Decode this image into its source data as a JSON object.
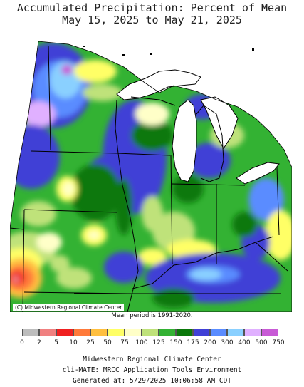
{
  "title_line1": "Accumulated Precipitation: Percent of Mean",
  "title_line2": "May 15, 2025 to May 21, 2025",
  "copyright": "(C) Midwestern Regional Climate Center",
  "mean_period": "Mean period is 1991-2020.",
  "legend": {
    "colors": [
      "#bdbdbd",
      "#f08080",
      "#f02020",
      "#ff7a3a",
      "#ffbf3f",
      "#ffff66",
      "#ffffc8",
      "#bfe27a",
      "#33b233",
      "#0a780a",
      "#4040d6",
      "#5a8cff",
      "#8ad0ff",
      "#e0b0ff",
      "#c85ad6"
    ],
    "labels": [
      "0",
      "2",
      "5",
      "10",
      "25",
      "50",
      "75",
      "100",
      "125",
      "150",
      "175",
      "200",
      "300",
      "400",
      "500",
      "750"
    ]
  },
  "footer_line1": "Midwestern Regional Climate Center",
  "footer_line2": "cli-MATE: MRCC Application Tools Environment",
  "footer_line3": "Generated at: 5/29/2025 10:06:58 AM CDT"
}
